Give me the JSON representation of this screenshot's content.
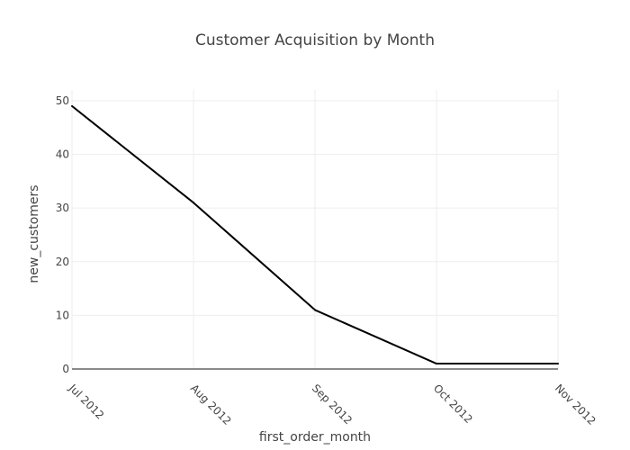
{
  "chart_data": {
    "type": "line",
    "title": "Customer Acquisition by Month",
    "xlabel": "first_order_month",
    "ylabel": "new_customers",
    "categories": [
      "Jul 2012",
      "Aug 2012",
      "Sep 2012",
      "Oct 2012",
      "Nov 2012"
    ],
    "series": [
      {
        "values": [
          49,
          31,
          11,
          1,
          1
        ],
        "color": "#000000"
      }
    ],
    "ylim": [
      0,
      52
    ],
    "yticks": [
      0,
      10,
      20,
      30,
      40,
      50
    ],
    "grid": true,
    "legend": "none",
    "colors": {
      "grid": "#eeeeee",
      "zero_line": "#444444",
      "text": "#444444",
      "background": "#ffffff"
    }
  }
}
